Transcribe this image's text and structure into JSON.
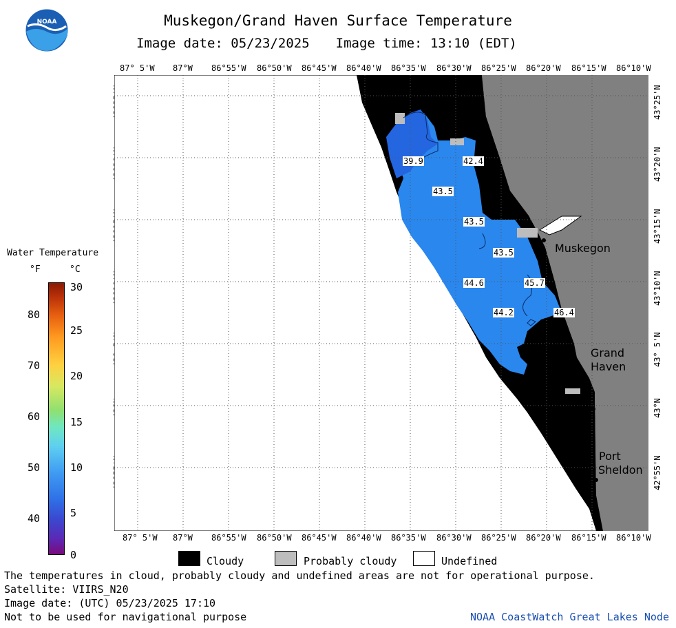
{
  "header": {
    "title": "Muskegon/Grand Haven Surface Temperature",
    "image_date": "Image date: 05/23/2025",
    "image_time": "Image time: 13:10 (EDT)",
    "logo_text": "NOAA"
  },
  "axes": {
    "longitude_ticks": [
      "87° 5'W",
      "87°W",
      "86°55'W",
      "86°50'W",
      "86°45'W",
      "86°40'W",
      "86°35'W",
      "86°30'W",
      "86°25'W",
      "86°20'W",
      "86°15'W",
      "86°10'W"
    ],
    "latitude_ticks": [
      "43°25'N",
      "43°20'N",
      "43°15'N",
      "43°10'N",
      "43° 5'N",
      "43°N",
      "42°55'N"
    ]
  },
  "places": {
    "muskegon": "Muskegon",
    "grand_haven_1": "Grand",
    "grand_haven_2": "Haven",
    "port_sheldon_1": "Port",
    "port_sheldon_2": "Sheldon"
  },
  "temperature_labels": [
    "39.9",
    "42.4",
    "43.5",
    "43.5",
    "43.5",
    "44.6",
    "45.7",
    "44.2",
    "46.4"
  ],
  "legend": {
    "title": "Water Temperature",
    "unit_f": "°F",
    "unit_c": "°C",
    "f_ticks": [
      "80",
      "70",
      "60",
      "50",
      "40"
    ],
    "c_ticks": [
      "30",
      "25",
      "20",
      "15",
      "10",
      "5",
      "0"
    ],
    "c_range": [
      0,
      30
    ]
  },
  "key": {
    "cloudy": "Cloudy",
    "probably_cloudy": "Probably cloudy",
    "undefined": "Undefined",
    "colors": {
      "cloudy": "#000000",
      "probably_cloudy": "#bdbdbd",
      "undefined": "#ffffff",
      "land": "#808080"
    }
  },
  "footer": {
    "disclaimer": "The temperatures in cloud, probably cloudy and undefined areas are not for operational purpose.",
    "satellite": "Satellite: VIIRS_N20",
    "utc_date": "Image date: (UTC) 05/23/2025  17:10",
    "nav_warning": "Not to be used for navigational purpose",
    "source": "NOAA CoastWatch Great Lakes Node"
  }
}
